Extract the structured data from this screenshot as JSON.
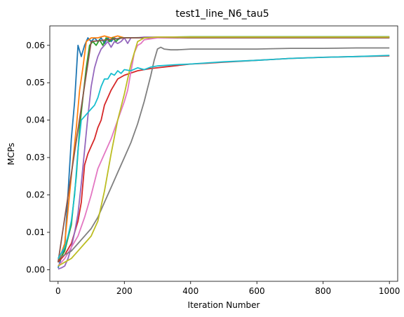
{
  "chart_data": {
    "type": "line",
    "title": "test1_line_N6_tau5",
    "xlabel": "Iteration Number",
    "ylabel": "MCPs",
    "xlim": [
      -25,
      1025
    ],
    "ylim": [
      -0.0031,
      0.0652
    ],
    "xticks": [
      0,
      200,
      400,
      600,
      800,
      1000
    ],
    "yticks": [
      0.0,
      0.01,
      0.02,
      0.03,
      0.04,
      0.05,
      0.06
    ],
    "ytick_labels": [
      "0.00",
      "0.01",
      "0.02",
      "0.03",
      "0.04",
      "0.05",
      "0.06"
    ],
    "grid": false,
    "legend": "none",
    "series": [
      {
        "color": "#1f77b4",
        "x": [
          0,
          20,
          40,
          50,
          60,
          70,
          80,
          90,
          100,
          110,
          120,
          130,
          140,
          150,
          160,
          170,
          180,
          190,
          200,
          300,
          400,
          600,
          800,
          1000
        ],
        "y": [
          0.0005,
          0.006,
          0.035,
          0.045,
          0.06,
          0.057,
          0.06,
          0.062,
          0.061,
          0.062,
          0.061,
          0.062,
          0.0605,
          0.062,
          0.061,
          0.062,
          0.0615,
          0.062,
          0.062,
          0.062,
          0.062,
          0.062,
          0.062,
          0.062
        ]
      },
      {
        "color": "#ff7f0e",
        "x": [
          0,
          20,
          40,
          55,
          65,
          75,
          85,
          100,
          120,
          140,
          160,
          180,
          200,
          400,
          600,
          800,
          1000
        ],
        "y": [
          0.002,
          0.007,
          0.025,
          0.038,
          0.048,
          0.054,
          0.061,
          0.062,
          0.062,
          0.0625,
          0.062,
          0.0625,
          0.062,
          0.0622,
          0.0622,
          0.0622,
          0.0622
        ]
      },
      {
        "color": "#2ca02c",
        "x": [
          0,
          20,
          40,
          55,
          65,
          75,
          85,
          95,
          105,
          115,
          125,
          135,
          145,
          155,
          165,
          175,
          185,
          200,
          400,
          600,
          800,
          1000
        ],
        "y": [
          0.002,
          0.005,
          0.012,
          0.025,
          0.038,
          0.046,
          0.054,
          0.06,
          0.061,
          0.06,
          0.0615,
          0.06,
          0.062,
          0.061,
          0.062,
          0.061,
          0.062,
          0.062,
          0.0623,
          0.0623,
          0.0623,
          0.0623
        ]
      },
      {
        "color": "#d62728",
        "x": [
          0,
          20,
          40,
          60,
          70,
          80,
          90,
          100,
          110,
          120,
          130,
          140,
          160,
          180,
          200,
          240,
          280,
          300,
          350,
          400,
          450,
          500,
          600,
          700,
          800,
          900,
          1000
        ],
        "y": [
          0.002,
          0.004,
          0.007,
          0.013,
          0.018,
          0.028,
          0.031,
          0.033,
          0.035,
          0.038,
          0.04,
          0.044,
          0.048,
          0.051,
          0.052,
          0.0532,
          0.0538,
          0.054,
          0.0545,
          0.055,
          0.0552,
          0.0555,
          0.056,
          0.0565,
          0.0568,
          0.057,
          0.0572
        ]
      },
      {
        "color": "#9467bd",
        "x": [
          0,
          10,
          20,
          30,
          40,
          50,
          60,
          70,
          80,
          90,
          100,
          110,
          120,
          130,
          140,
          150,
          160,
          170,
          180,
          190,
          200,
          210,
          220,
          240,
          260,
          300,
          400,
          600,
          800,
          1000
        ],
        "y": [
          0.0002,
          0.0005,
          0.001,
          0.003,
          0.006,
          0.01,
          0.015,
          0.023,
          0.032,
          0.041,
          0.049,
          0.054,
          0.057,
          0.059,
          0.06,
          0.061,
          0.0595,
          0.061,
          0.0605,
          0.061,
          0.062,
          0.0605,
          0.062,
          0.062,
          0.0622,
          0.0622,
          0.0622,
          0.0622,
          0.0622,
          0.0622
        ]
      },
      {
        "color": "#8c564b",
        "x": [
          0,
          100,
          200,
          300,
          400,
          600,
          800,
          1000
        ],
        "y": [
          0.002,
          0.061,
          0.062,
          0.062,
          0.062,
          0.062,
          0.062,
          0.062
        ]
      },
      {
        "color": "#e377c2",
        "x": [
          0,
          20,
          40,
          60,
          80,
          100,
          120,
          140,
          160,
          180,
          200,
          210,
          220,
          230,
          240,
          250,
          260,
          300,
          400,
          600,
          800,
          1000
        ],
        "y": [
          0.001,
          0.003,
          0.006,
          0.009,
          0.014,
          0.02,
          0.027,
          0.031,
          0.035,
          0.04,
          0.045,
          0.048,
          0.053,
          0.058,
          0.06,
          0.0605,
          0.0615,
          0.062,
          0.0622,
          0.0622,
          0.0622,
          0.0622
        ]
      },
      {
        "color": "#7f7f7f",
        "x": [
          0,
          20,
          40,
          60,
          80,
          100,
          120,
          140,
          160,
          180,
          200,
          220,
          240,
          260,
          280,
          290,
          300,
          310,
          320,
          340,
          360,
          400,
          500,
          600,
          700,
          800,
          900,
          1000
        ],
        "y": [
          0.003,
          0.004,
          0.005,
          0.007,
          0.009,
          0.011,
          0.014,
          0.018,
          0.022,
          0.026,
          0.03,
          0.034,
          0.039,
          0.045,
          0.052,
          0.056,
          0.059,
          0.0595,
          0.059,
          0.0588,
          0.0588,
          0.059,
          0.059,
          0.059,
          0.0592,
          0.0592,
          0.0593,
          0.0593
        ]
      },
      {
        "color": "#bcbd22",
        "x": [
          0,
          20,
          40,
          60,
          80,
          100,
          120,
          140,
          160,
          180,
          200,
          220,
          240,
          250,
          260,
          300,
          400,
          600,
          800,
          1000
        ],
        "y": [
          0.001,
          0.002,
          0.003,
          0.005,
          0.007,
          0.009,
          0.013,
          0.021,
          0.031,
          0.04,
          0.047,
          0.055,
          0.061,
          0.0615,
          0.062,
          0.0622,
          0.0622,
          0.0622,
          0.0622,
          0.0622
        ]
      },
      {
        "color": "#17becf",
        "x": [
          0,
          10,
          20,
          30,
          40,
          50,
          60,
          70,
          80,
          90,
          100,
          110,
          120,
          130,
          140,
          150,
          160,
          170,
          180,
          190,
          200,
          220,
          240,
          260,
          280,
          300,
          350,
          400,
          450,
          500,
          600,
          700,
          800,
          900,
          1000
        ],
        "y": [
          0.003,
          0.0045,
          0.006,
          0.009,
          0.013,
          0.02,
          0.032,
          0.04,
          0.041,
          0.042,
          0.043,
          0.044,
          0.046,
          0.049,
          0.051,
          0.051,
          0.0525,
          0.052,
          0.0532,
          0.0525,
          0.0535,
          0.0532,
          0.054,
          0.0535,
          0.0542,
          0.0545,
          0.0548,
          0.055,
          0.0553,
          0.0556,
          0.056,
          0.0565,
          0.0568,
          0.057,
          0.0573
        ]
      }
    ]
  }
}
